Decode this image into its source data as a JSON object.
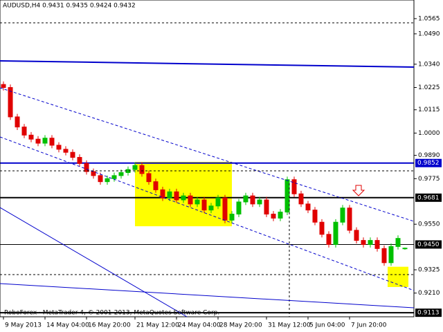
{
  "chart_data": {
    "type": "candlestick",
    "title": "AUDUSD,H4  0.9431 0.9435 0.9424 0.9432",
    "footer": "RoboForex · MetaTrader 4, © 2001-2013, MetaQuotes Software Corp.",
    "categories": [
      "9 May 2013",
      null,
      null,
      null,
      null,
      null,
      "14 May 04:00",
      null,
      null,
      null,
      null,
      null,
      "16 May 20:00",
      null,
      null,
      null,
      null,
      null,
      null,
      "21 May 12:00",
      null,
      null,
      null,
      null,
      null,
      "24 May 04:00",
      null,
      null,
      null,
      null,
      null,
      "28 May 20:00",
      null,
      null,
      null,
      null,
      null,
      null,
      "31 May 12:00",
      null,
      null,
      null,
      null,
      null,
      "5 Jun 04:00",
      null,
      null,
      null,
      null,
      null,
      "7 Jun 20:00",
      null,
      null,
      null,
      null,
      null,
      null,
      null,
      null
    ],
    "ohlc": [
      [
        1.024,
        1.0255,
        1.021,
        1.0225
      ],
      [
        1.0225,
        1.024,
        1.0065,
        1.008
      ],
      [
        1.008,
        1.0095,
        1.0015,
        1.003
      ],
      [
        1.003,
        1.0045,
        0.9975,
        0.999
      ],
      [
        0.999,
        1.0005,
        0.9955,
        0.997
      ],
      [
        0.997,
        0.9985,
        0.9935,
        0.995
      ],
      [
        0.995,
        0.999,
        0.9935,
        0.9975
      ],
      [
        0.9975,
        0.999,
        0.9925,
        0.994
      ],
      [
        0.994,
        0.9955,
        0.9905,
        0.992
      ],
      [
        0.992,
        0.9935,
        0.989,
        0.9905
      ],
      [
        0.9905,
        0.992,
        0.9865,
        0.988
      ],
      [
        0.988,
        0.9895,
        0.9835,
        0.985
      ],
      [
        0.985,
        0.9865,
        0.9795,
        0.981
      ],
      [
        0.981,
        0.9825,
        0.9775,
        0.979
      ],
      [
        0.979,
        0.9805,
        0.9745,
        0.976
      ],
      [
        0.976,
        0.979,
        0.9745,
        0.9775
      ],
      [
        0.9775,
        0.9805,
        0.976,
        0.979
      ],
      [
        0.979,
        0.982,
        0.9775,
        0.9805
      ],
      [
        0.9805,
        0.9835,
        0.979,
        0.982
      ],
      [
        0.982,
        0.9855,
        0.9805,
        0.984
      ],
      [
        0.984,
        0.9855,
        0.9785,
        0.98
      ],
      [
        0.98,
        0.9815,
        0.9745,
        0.976
      ],
      [
        0.976,
        0.9775,
        0.9705,
        0.972
      ],
      [
        0.972,
        0.9735,
        0.9665,
        0.968
      ],
      [
        0.968,
        0.9725,
        0.9665,
        0.971
      ],
      [
        0.971,
        0.9725,
        0.9655,
        0.967
      ],
      [
        0.967,
        0.9705,
        0.9655,
        0.969
      ],
      [
        0.969,
        0.9705,
        0.9635,
        0.965
      ],
      [
        0.965,
        0.9685,
        0.9635,
        0.967
      ],
      [
        0.967,
        0.9685,
        0.9605,
        0.962
      ],
      [
        0.962,
        0.9655,
        0.9605,
        0.964
      ],
      [
        0.964,
        0.9695,
        0.9625,
        0.968
      ],
      [
        0.968,
        0.9695,
        0.9555,
        0.957
      ],
      [
        0.957,
        0.9615,
        0.9555,
        0.96
      ],
      [
        0.96,
        0.9675,
        0.9585,
        0.966
      ],
      [
        0.966,
        0.9705,
        0.9645,
        0.969
      ],
      [
        0.969,
        0.9705,
        0.9635,
        0.965
      ],
      [
        0.965,
        0.9685,
        0.9635,
        0.967
      ],
      [
        0.967,
        0.9685,
        0.9585,
        0.96
      ],
      [
        0.96,
        0.9615,
        0.9565,
        0.958
      ],
      [
        0.958,
        0.9625,
        0.9565,
        0.961
      ],
      [
        0.961,
        0.9785,
        0.9595,
        0.977
      ],
      [
        0.977,
        0.9785,
        0.9685,
        0.97
      ],
      [
        0.97,
        0.9715,
        0.9635,
        0.965
      ],
      [
        0.965,
        0.9665,
        0.9605,
        0.962
      ],
      [
        0.962,
        0.9635,
        0.9545,
        0.956
      ],
      [
        0.956,
        0.9575,
        0.9485,
        0.95
      ],
      [
        0.95,
        0.9515,
        0.9435,
        0.945
      ],
      [
        0.945,
        0.9575,
        0.9435,
        0.956
      ],
      [
        0.956,
        0.9645,
        0.9545,
        0.963
      ],
      [
        0.963,
        0.9645,
        0.9505,
        0.952
      ],
      [
        0.952,
        0.9535,
        0.9455,
        0.947
      ],
      [
        0.947,
        0.9485,
        0.9435,
        0.945
      ],
      [
        0.945,
        0.9485,
        0.9435,
        0.947
      ],
      [
        0.947,
        0.9485,
        0.9415,
        0.943
      ],
      [
        0.943,
        0.9445,
        0.9345,
        0.936
      ],
      [
        0.936,
        0.9455,
        0.9345,
        0.944
      ],
      [
        0.944,
        0.9495,
        0.9425,
        0.948
      ],
      [
        0.9431,
        0.9435,
        0.9424,
        0.9432
      ]
    ],
    "up_color": "#00c000",
    "down_color": "#e00000",
    "ylim": [
      0.9093,
      1.0657
    ],
    "yticks": [
      {
        "value": 1.0565,
        "label": "1.0565"
      },
      {
        "value": 1.049,
        "label": "1.0490"
      },
      {
        "value": 1.034,
        "label": "1.0340"
      },
      {
        "value": 1.0225,
        "label": "1.0225"
      },
      {
        "value": 1.0115,
        "label": "1.0115"
      },
      {
        "value": 1.0,
        "label": "1.0000"
      },
      {
        "value": 0.989,
        "label": "0.9890"
      },
      {
        "value": 0.9775,
        "label": "0.9775"
      },
      {
        "value": 0.955,
        "label": "0.9550"
      },
      {
        "value": 0.9325,
        "label": "0.9325"
      },
      {
        "value": 0.921,
        "label": "0.9210"
      }
    ],
    "levels": [
      {
        "value": 0.9852,
        "label": "0.9852",
        "color": "#0000cc"
      },
      {
        "value": 0.9681,
        "label": "0.9681",
        "color": "#000000"
      },
      {
        "value": 0.945,
        "label": "0.9450",
        "color": "#000000"
      },
      {
        "value": 0.9113,
        "label": "0.9113",
        "color": "#000000"
      }
    ],
    "zones": [
      [
        19,
        0.9858,
        33,
        0.954
      ],
      [
        55.5,
        0.934,
        58.5,
        0.924
      ]
    ],
    "zone_color": "#ffff00"
  }
}
